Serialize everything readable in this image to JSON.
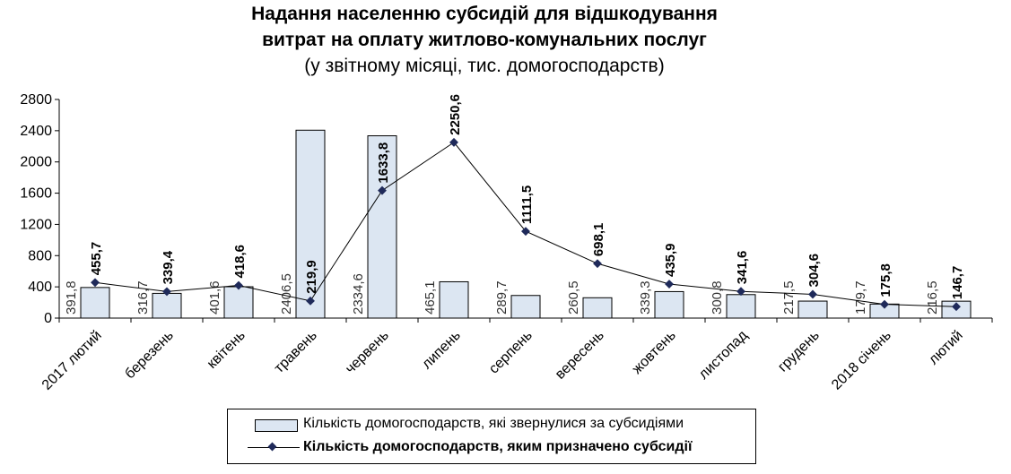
{
  "title": {
    "line1": "Надання населенню субсидій для відшкодування",
    "line2": "витрат на оплату житлово-комунальних послуг",
    "line3": "(у звітному місяці, тис. домогосподарств)"
  },
  "colors": {
    "bar_fill": "#dce6f2",
    "bar_stroke": "#000000",
    "line": "#000000",
    "marker": "#1f2a5a"
  },
  "chart_data": {
    "type": "bar",
    "title": "Надання населенню субсидій для відшкодування витрат на оплату житлово-комунальних послуг (у звітному місяці, тис. домогосподарств)",
    "categories": [
      "2017 лютий",
      "березень",
      "квітень",
      "травень",
      "червень",
      "липень",
      "серпень",
      "вересень",
      "жовтень",
      "листопад",
      "грудень",
      "2018 січень",
      "лютий"
    ],
    "ylim": [
      0,
      2800
    ],
    "yticks": [
      0,
      400,
      800,
      1200,
      1600,
      2000,
      2400,
      2800
    ],
    "grid": false,
    "legend_position": "bottom",
    "series": [
      {
        "name": "Кількість домогосподарств, які звернулися за субсидіями",
        "type": "bar",
        "values": [
          391.8,
          316.7,
          401.6,
          2406.5,
          2334.6,
          465.1,
          289.7,
          260.5,
          339.3,
          300.8,
          217.5,
          179.7,
          216.5
        ],
        "labels": [
          "391,8",
          "316,7",
          "401,6",
          "2406,5",
          "2334,6",
          "465,1",
          "289,7",
          "260,5",
          "339,3",
          "300,8",
          "217,5",
          "179,7",
          "216,5"
        ]
      },
      {
        "name": "Кількість домогосподарств, яким призначено субсидії",
        "type": "line",
        "values": [
          455.7,
          339.4,
          418.6,
          219.9,
          1633.8,
          2250.6,
          1111.5,
          698.1,
          435.9,
          341.6,
          304.6,
          175.8,
          146.7
        ],
        "labels": [
          "455,7",
          "339,4",
          "418,6",
          "219,9",
          "1633,8",
          "2250,6",
          "1111,5",
          "698,1",
          "435,9",
          "341,6",
          "304,6",
          "175,8",
          "146,7"
        ]
      }
    ]
  }
}
